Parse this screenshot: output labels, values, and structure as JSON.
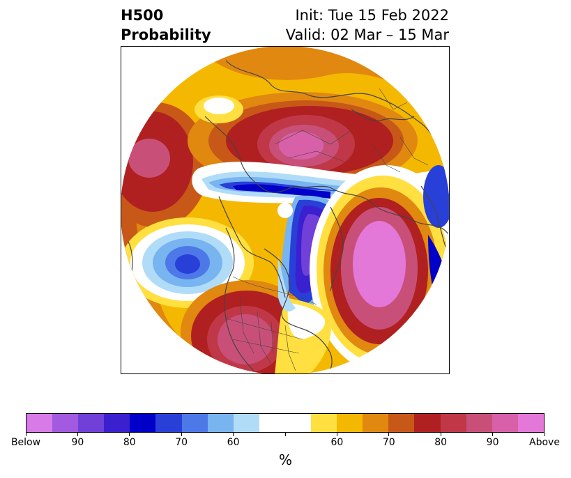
{
  "header": {
    "title_line1": "H500",
    "title_line2": "Probability",
    "init": "Init: Tue 15 Feb 2022",
    "valid": "Valid: 02 Mar – 15 Mar"
  },
  "map": {
    "projection": "north-polar-stereographic",
    "layers": [
      "coastlines",
      "country-borders",
      "state-borders"
    ],
    "pole_marker": "white-dot"
  },
  "colorbar": {
    "colors": [
      "#d87ae8",
      "#a25ae0",
      "#7040d8",
      "#3b20d0",
      "#0000c8",
      "#2840d8",
      "#4d78e8",
      "#78b4f0",
      "#b0dcf8",
      "#ffffff",
      "#ffffff",
      "#ffe040",
      "#f5b800",
      "#e08810",
      "#c85818",
      "#b02020",
      "#c03848",
      "#c85078",
      "#d860a8",
      "#e478d8"
    ],
    "tick_labels": [
      "Below",
      "90",
      "80",
      "70",
      "60",
      "",
      "60",
      "70",
      "80",
      "90",
      "Above"
    ],
    "units_label": "%"
  }
}
